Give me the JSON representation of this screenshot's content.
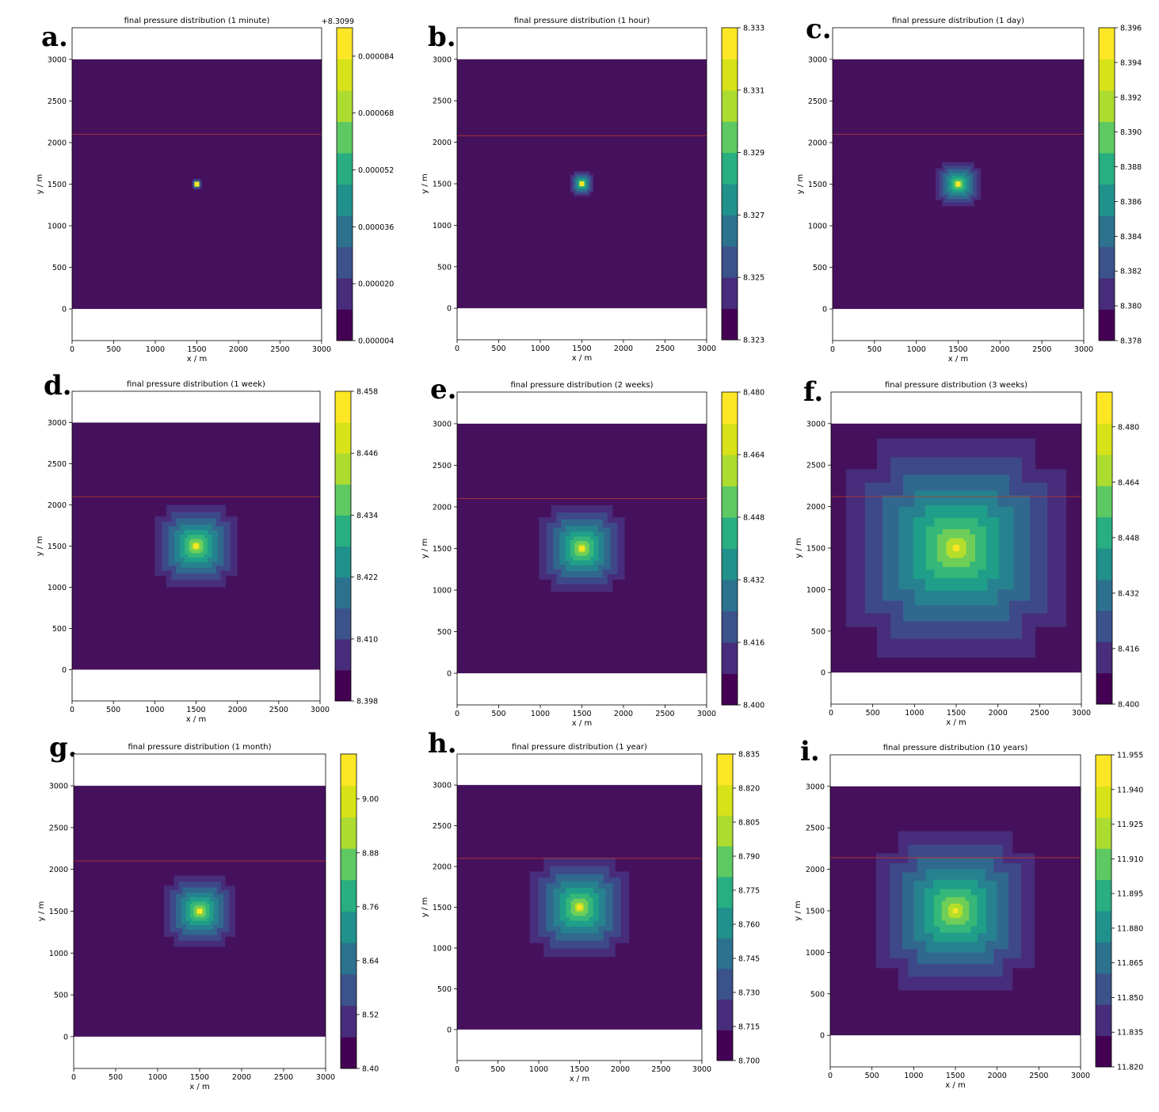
{
  "chart_data": [
    {
      "type": "heatmap",
      "panel_label": "a.",
      "title": "final pressure distribution  (1 minute)",
      "xlabel": "x / m",
      "ylabel": "y / m",
      "xlim": [
        0,
        3000
      ],
      "ylim": [
        -380,
        3380
      ],
      "x_ticks": [
        0,
        500,
        1000,
        1500,
        2000,
        2500,
        3000
      ],
      "y_ticks": [
        0,
        500,
        1000,
        1500,
        2000,
        2500,
        3000
      ],
      "domain": {
        "x": [
          0,
          3000
        ],
        "y": [
          0,
          3000
        ]
      },
      "source_point": {
        "x": 1500,
        "y": 1500
      },
      "red_line_y": 2100,
      "plume_extent": {
        "xmin": 1440,
        "xmax": 1560,
        "ymin": 1440,
        "ymax": 1570
      },
      "colorbar": {
        "offset_label": "+8.3099",
        "min": 4e-06,
        "max": 9.2e-05,
        "ticks": [
          "0.000004",
          "0.000020",
          "0.000036",
          "0.000052",
          "0.000068",
          "0.000084"
        ],
        "tick_values": [
          4e-06,
          2e-05,
          3.6e-05,
          5.2e-05,
          6.8e-05,
          8.4e-05
        ]
      }
    },
    {
      "type": "heatmap",
      "panel_label": "b.",
      "title": "final pressure distribution  (1 hour)",
      "xlabel": "x / m",
      "ylabel": "y / m",
      "xlim": [
        0,
        3000
      ],
      "ylim": [
        -380,
        3380
      ],
      "x_ticks": [
        0,
        500,
        1000,
        1500,
        2000,
        2500,
        3000
      ],
      "y_ticks": [
        0,
        500,
        1000,
        1500,
        2000,
        2500,
        3000
      ],
      "domain": {
        "x": [
          0,
          3000
        ],
        "y": [
          0,
          3000
        ]
      },
      "source_point": {
        "x": 1500,
        "y": 1500
      },
      "red_line_y": 2080,
      "plume_extent": {
        "xmin": 1370,
        "xmax": 1650,
        "ymin": 1340,
        "ymax": 1640
      },
      "colorbar": {
        "offset_label": "",
        "min": 8.323,
        "max": 8.333,
        "ticks": [
          "8.323",
          "8.325",
          "8.327",
          "8.329",
          "8.331",
          "8.333"
        ],
        "tick_values": [
          8.323,
          8.325,
          8.327,
          8.329,
          8.331,
          8.333
        ]
      }
    },
    {
      "type": "heatmap",
      "panel_label": "c.",
      "title": "final pressure distribution    (1 day)",
      "xlabel": "x / m",
      "ylabel": "y / m",
      "xlim": [
        0,
        3000
      ],
      "ylim": [
        -380,
        3380
      ],
      "x_ticks": [
        0,
        500,
        1000,
        1500,
        2000,
        2500,
        3000
      ],
      "y_ticks": [
        0,
        500,
        1000,
        1500,
        2000,
        2500,
        3000
      ],
      "domain": {
        "x": [
          0,
          3000
        ],
        "y": [
          0,
          3000
        ]
      },
      "source_point": {
        "x": 1500,
        "y": 1500
      },
      "red_line_y": 2100,
      "plume_extent": {
        "xmin": 1230,
        "xmax": 1770,
        "ymin": 1240,
        "ymax": 1770
      },
      "colorbar": {
        "offset_label": "",
        "min": 8.378,
        "max": 8.396,
        "ticks": [
          "8.378",
          "8.380",
          "8.382",
          "8.384",
          "8.386",
          "8.388",
          "8.390",
          "8.392",
          "8.394",
          "8.396"
        ],
        "tick_values": [
          8.378,
          8.38,
          8.382,
          8.384,
          8.386,
          8.388,
          8.39,
          8.392,
          8.394,
          8.396
        ]
      }
    },
    {
      "type": "heatmap",
      "panel_label": "d.",
      "title": "final pressure distribution  (1 week)",
      "xlabel": "x / m",
      "ylabel": "y / m",
      "xlim": [
        0,
        3000
      ],
      "ylim": [
        -380,
        3380
      ],
      "x_ticks": [
        0,
        500,
        1000,
        1500,
        2000,
        2500,
        3000
      ],
      "y_ticks": [
        0,
        500,
        1000,
        1500,
        2000,
        2500,
        3000
      ],
      "domain": {
        "x": [
          0,
          3000
        ],
        "y": [
          0,
          3000
        ]
      },
      "source_point": {
        "x": 1500,
        "y": 1500
      },
      "red_line_y": 2100,
      "plume_extent": {
        "xmin": 1040,
        "xmax": 2040,
        "ymin": 1050,
        "ymax": 2050
      },
      "colorbar": {
        "offset_label": "",
        "min": 8.398,
        "max": 8.458,
        "ticks": [
          "8.398",
          "8.410",
          "8.422",
          "8.434",
          "8.446",
          "8.458"
        ],
        "tick_values": [
          8.398,
          8.41,
          8.422,
          8.434,
          8.446,
          8.458
        ]
      }
    },
    {
      "type": "heatmap",
      "panel_label": "e.",
      "title": "final pressure distribution (2 weeks)",
      "xlabel": "x / m",
      "ylabel": "y / m",
      "xlim": [
        0,
        3000
      ],
      "ylim": [
        -380,
        3380
      ],
      "x_ticks": [
        0,
        500,
        1000,
        1500,
        2000,
        2500,
        3000
      ],
      "y_ticks": [
        0,
        500,
        1000,
        1500,
        2000,
        2500,
        3000
      ],
      "domain": {
        "x": [
          0,
          3000
        ],
        "y": [
          0,
          3000
        ]
      },
      "source_point": {
        "x": 1500,
        "y": 1500
      },
      "red_line_y": 2100,
      "plume_extent": {
        "xmin": 1040,
        "xmax": 2070,
        "ymin": 1040,
        "ymax": 2080
      },
      "colorbar": {
        "offset_label": "",
        "min": 8.4,
        "max": 8.48,
        "ticks": [
          "8.400",
          "8.416",
          "8.432",
          "8.448",
          "8.464",
          "8.480"
        ],
        "tick_values": [
          8.4,
          8.416,
          8.432,
          8.448,
          8.464,
          8.48
        ]
      }
    },
    {
      "type": "heatmap",
      "panel_label": "f.",
      "title": "final pressure distribution (3 weeks)",
      "xlabel": "x / m",
      "ylabel": "y / m",
      "xlim": [
        0,
        3000
      ],
      "ylim": [
        -380,
        3380
      ],
      "x_ticks": [
        0,
        500,
        1000,
        1500,
        2000,
        2500,
        3000
      ],
      "y_ticks": [
        0,
        500,
        1000,
        1500,
        2000,
        2500,
        3000
      ],
      "domain": {
        "x": [
          0,
          3000
        ],
        "y": [
          0,
          3000
        ]
      },
      "source_point": {
        "x": 1500,
        "y": 1500
      },
      "red_line_y": 2120,
      "plume_extent": {
        "xmin": 180,
        "xmax": 2820,
        "ymin": 180,
        "ymax": 2820
      },
      "colorbar": {
        "offset_label": "",
        "min": 8.4,
        "max": 8.49,
        "ticks": [
          "8.400",
          "8.416",
          "8.432",
          "8.448",
          "8.464",
          "8.480"
        ],
        "tick_values": [
          8.4,
          8.416,
          8.432,
          8.448,
          8.464,
          8.48
        ]
      }
    },
    {
      "type": "heatmap",
      "panel_label": "g.",
      "title": "final pressure distribution  (1 month)",
      "xlabel": "x / m",
      "ylabel": "y / m",
      "xlim": [
        0,
        3000
      ],
      "ylim": [
        -380,
        3380
      ],
      "x_ticks": [
        0,
        500,
        1000,
        1500,
        2000,
        2500,
        3000
      ],
      "y_ticks": [
        0,
        500,
        1000,
        1500,
        2000,
        2500,
        3000
      ],
      "domain": {
        "x": [
          0,
          3000
        ],
        "y": [
          0,
          3000
        ]
      },
      "source_point": {
        "x": 1500,
        "y": 1500
      },
      "red_line_y": 2100,
      "plume_extent": {
        "xmin": 1050,
        "xmax": 1900,
        "ymin": 1050,
        "ymax": 1900
      },
      "colorbar": {
        "offset_label": "",
        "min": 8.4,
        "max": 9.1,
        "ticks": [
          "8.40",
          "8.52",
          "8.64",
          "8.76",
          "8.88",
          "9.00"
        ],
        "tick_values": [
          8.4,
          8.52,
          8.64,
          8.76,
          8.88,
          9.0
        ]
      }
    },
    {
      "type": "heatmap",
      "panel_label": "h.",
      "title": "final pressure distribution (1 year)",
      "xlabel": "x / m",
      "ylabel": "y / m",
      "xlim": [
        0,
        3000
      ],
      "ylim": [
        -380,
        3380
      ],
      "x_ticks": [
        0,
        500,
        1000,
        1500,
        2000,
        2500,
        3000
      ],
      "y_ticks": [
        0,
        500,
        1000,
        1500,
        2000,
        2500,
        3000
      ],
      "domain": {
        "x": [
          0,
          3000
        ],
        "y": [
          0,
          3000
        ]
      },
      "source_point": {
        "x": 1500,
        "y": 1500
      },
      "red_line_y": 2100,
      "plume_extent": {
        "xmin": 860,
        "xmax": 2080,
        "ymin": 870,
        "ymax": 2090
      },
      "colorbar": {
        "offset_label": "",
        "min": 8.7,
        "max": 8.835,
        "ticks": [
          "8.700",
          "8.715",
          "8.730",
          "8.745",
          "8.760",
          "8.775",
          "8.790",
          "8.805",
          "8.820",
          "8.835"
        ],
        "tick_values": [
          8.7,
          8.715,
          8.73,
          8.745,
          8.76,
          8.775,
          8.79,
          8.805,
          8.82,
          8.835
        ]
      }
    },
    {
      "type": "heatmap",
      "panel_label": "i.",
      "title": "final pressure distribution (10 years)",
      "xlabel": "x / m",
      "ylabel": "y / m",
      "xlim": [
        0,
        3000
      ],
      "ylim": [
        -380,
        3380
      ],
      "x_ticks": [
        0,
        500,
        1000,
        1500,
        2000,
        2500,
        3000
      ],
      "y_ticks": [
        0,
        500,
        1000,
        1500,
        2000,
        2500,
        3000
      ],
      "domain": {
        "x": [
          0,
          3000
        ],
        "y": [
          0,
          3000
        ]
      },
      "source_point": {
        "x": 1500,
        "y": 1500
      },
      "red_line_y": 2140,
      "plume_extent": {
        "xmin": 660,
        "xmax": 2560,
        "ymin": 640,
        "ymax": 2560
      },
      "colorbar": {
        "offset_label": "",
        "min": 11.82,
        "max": 11.955,
        "ticks": [
          "11.820",
          "11.835",
          "11.850",
          "11.865",
          "11.880",
          "11.895",
          "11.910",
          "11.925",
          "11.940",
          "11.955"
        ],
        "tick_values": [
          11.82,
          11.835,
          11.85,
          11.865,
          11.88,
          11.895,
          11.91,
          11.925,
          11.94,
          11.955
        ]
      }
    }
  ],
  "colors": {
    "background_field": "#46115c",
    "red_line": "#c0392b",
    "viridis_bands": [
      "#440154",
      "#472d7b",
      "#3b528b",
      "#2c728e",
      "#21918c",
      "#28ae80",
      "#5ec962",
      "#addc30",
      "#d8e219",
      "#fde725"
    ]
  }
}
